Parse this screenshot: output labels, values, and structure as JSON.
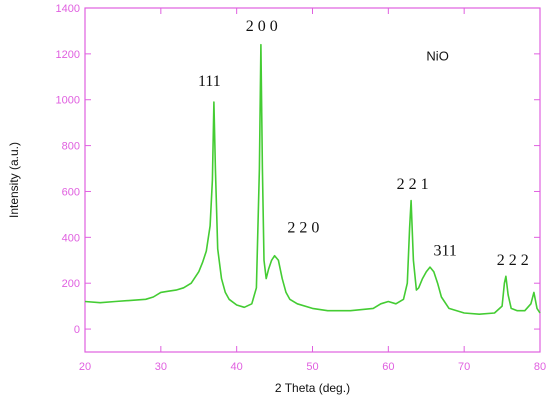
{
  "chart_data": {
    "type": "line",
    "title": "",
    "xlabel": "2 Theta (deg.)",
    "ylabel": "Intensity (a.u.)",
    "xlim": [
      20,
      80
    ],
    "ylim": [
      -100,
      1400
    ],
    "x_ticks": [
      20,
      30,
      40,
      50,
      60,
      70,
      80
    ],
    "y_ticks": [
      0,
      200,
      400,
      600,
      800,
      1000,
      1200,
      1400
    ],
    "grid": false,
    "legend": "none",
    "colors": {
      "line": "#44cc33",
      "axis": "#e060e0",
      "text": "#111111"
    },
    "series": [
      {
        "x": [
          20,
          22,
          24,
          26,
          28,
          29,
          30,
          31,
          32,
          33,
          34,
          35,
          35.5,
          36,
          36.5,
          36.8,
          37.0,
          37.2,
          37.5,
          38,
          38.5,
          39,
          40,
          41,
          42,
          42.6,
          43.0,
          43.2,
          43.4,
          43.6,
          43.9,
          44.2,
          44.6,
          45,
          45.5,
          46,
          46.5,
          47,
          48,
          50,
          52,
          55,
          58,
          59,
          60,
          61,
          62,
          62.5,
          62.8,
          63.0,
          63.3,
          63.7,
          64,
          64.5,
          65,
          65.5,
          66,
          66.5,
          67,
          68,
          70,
          72,
          74,
          75,
          75.3,
          75.5,
          75.8,
          76.2,
          77,
          78,
          78.8,
          79.2,
          79.6,
          80
        ],
        "y": [
          120,
          115,
          120,
          125,
          130,
          140,
          160,
          165,
          170,
          180,
          200,
          250,
          290,
          340,
          450,
          650,
          990,
          700,
          350,
          220,
          160,
          130,
          105,
          95,
          110,
          180,
          700,
          1240,
          700,
          300,
          220,
          260,
          300,
          320,
          300,
          220,
          160,
          130,
          110,
          90,
          80,
          80,
          90,
          110,
          120,
          110,
          130,
          200,
          440,
          560,
          300,
          170,
          180,
          220,
          250,
          270,
          250,
          200,
          140,
          90,
          70,
          65,
          70,
          100,
          200,
          230,
          150,
          90,
          80,
          80,
          110,
          160,
          90,
          70
        ]
      }
    ],
    "annotations": [
      {
        "text": "111",
        "x": 36.4,
        "y": 1060
      },
      {
        "text": "2 0 0",
        "x": 43.3,
        "y": 1300
      },
      {
        "text": "2 2 0",
        "x": 48.8,
        "y": 420
      },
      {
        "text": "2 2 1",
        "x": 63.2,
        "y": 610
      },
      {
        "text": "311",
        "x": 67.5,
        "y": 320
      },
      {
        "text": "2 2 2",
        "x": 76.4,
        "y": 280
      },
      {
        "text": "NiO",
        "x": 66.5,
        "y": 1170
      }
    ]
  }
}
